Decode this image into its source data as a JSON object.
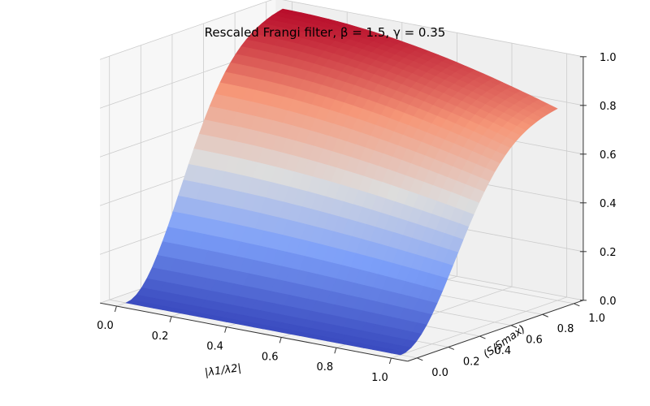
{
  "chart_data": {
    "type": "surface3d",
    "title": "Rescaled Frangi filter, β = 1.5, γ = 0.35",
    "xlabel": "|λ1/λ2|",
    "ylabel": "(S/Smax)",
    "zlabel": "",
    "xlim": [
      0,
      1
    ],
    "ylim": [
      0,
      1
    ],
    "zlim": [
      0,
      1
    ],
    "x_ticks": [
      "0.0",
      "0.2",
      "0.4",
      "0.6",
      "0.8",
      "1.0"
    ],
    "y_ticks": [
      "0.0",
      "0.2",
      "0.4",
      "0.6",
      "0.8",
      "1.0"
    ],
    "z_ticks": [
      "0.0",
      "0.2",
      "0.4",
      "0.6",
      "0.8",
      "1.0"
    ],
    "grid": true,
    "colormap": "coolwarm",
    "formula": "z = exp(-x^2 / (2*1.5^2)) * (1 - exp(-y^2 / (2*0.35^2)))",
    "params": {
      "beta": 1.5,
      "gamma": 0.35
    },
    "colors": {
      "pane": "#f2f2f2",
      "grid": "#cccccc",
      "low": "#3b4cc0",
      "mid": "#dddddd",
      "high": "#b40426"
    }
  }
}
